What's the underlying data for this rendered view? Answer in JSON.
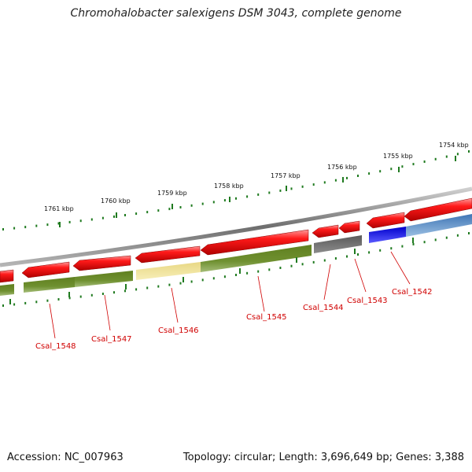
{
  "title": "Chromohalobacter salexigens DSM 3043, complete genome",
  "accession": "Accession: NC_007963",
  "summary": "Topology: circular; Length: 3,696,649 bp; Genes: 3,388",
  "colors": {
    "forward_cds": "#e60000",
    "rna_track": "#6b8e23",
    "pseudo_gene": "#ede08a",
    "hypothetical_gene": "#6b6b6b",
    "selected_gene": "#0000ee",
    "steel_gene": "#4a80bf",
    "tick_color": "#1f7a1f",
    "label_color": "#d00000",
    "backbone": "#808080"
  },
  "scale_labels": [
    "1761 kbp",
    "1760 kbp",
    "1759 kbp",
    "1758 kbp",
    "1757 kbp",
    "1756 kbp",
    "1755 kbp",
    "1754 kbp"
  ],
  "gene_labels": [
    "Csal_1548",
    "Csal_1547",
    "Csal_1546",
    "Csal_1545",
    "Csal_1544",
    "Csal_1543",
    "Csal_1542"
  ]
}
